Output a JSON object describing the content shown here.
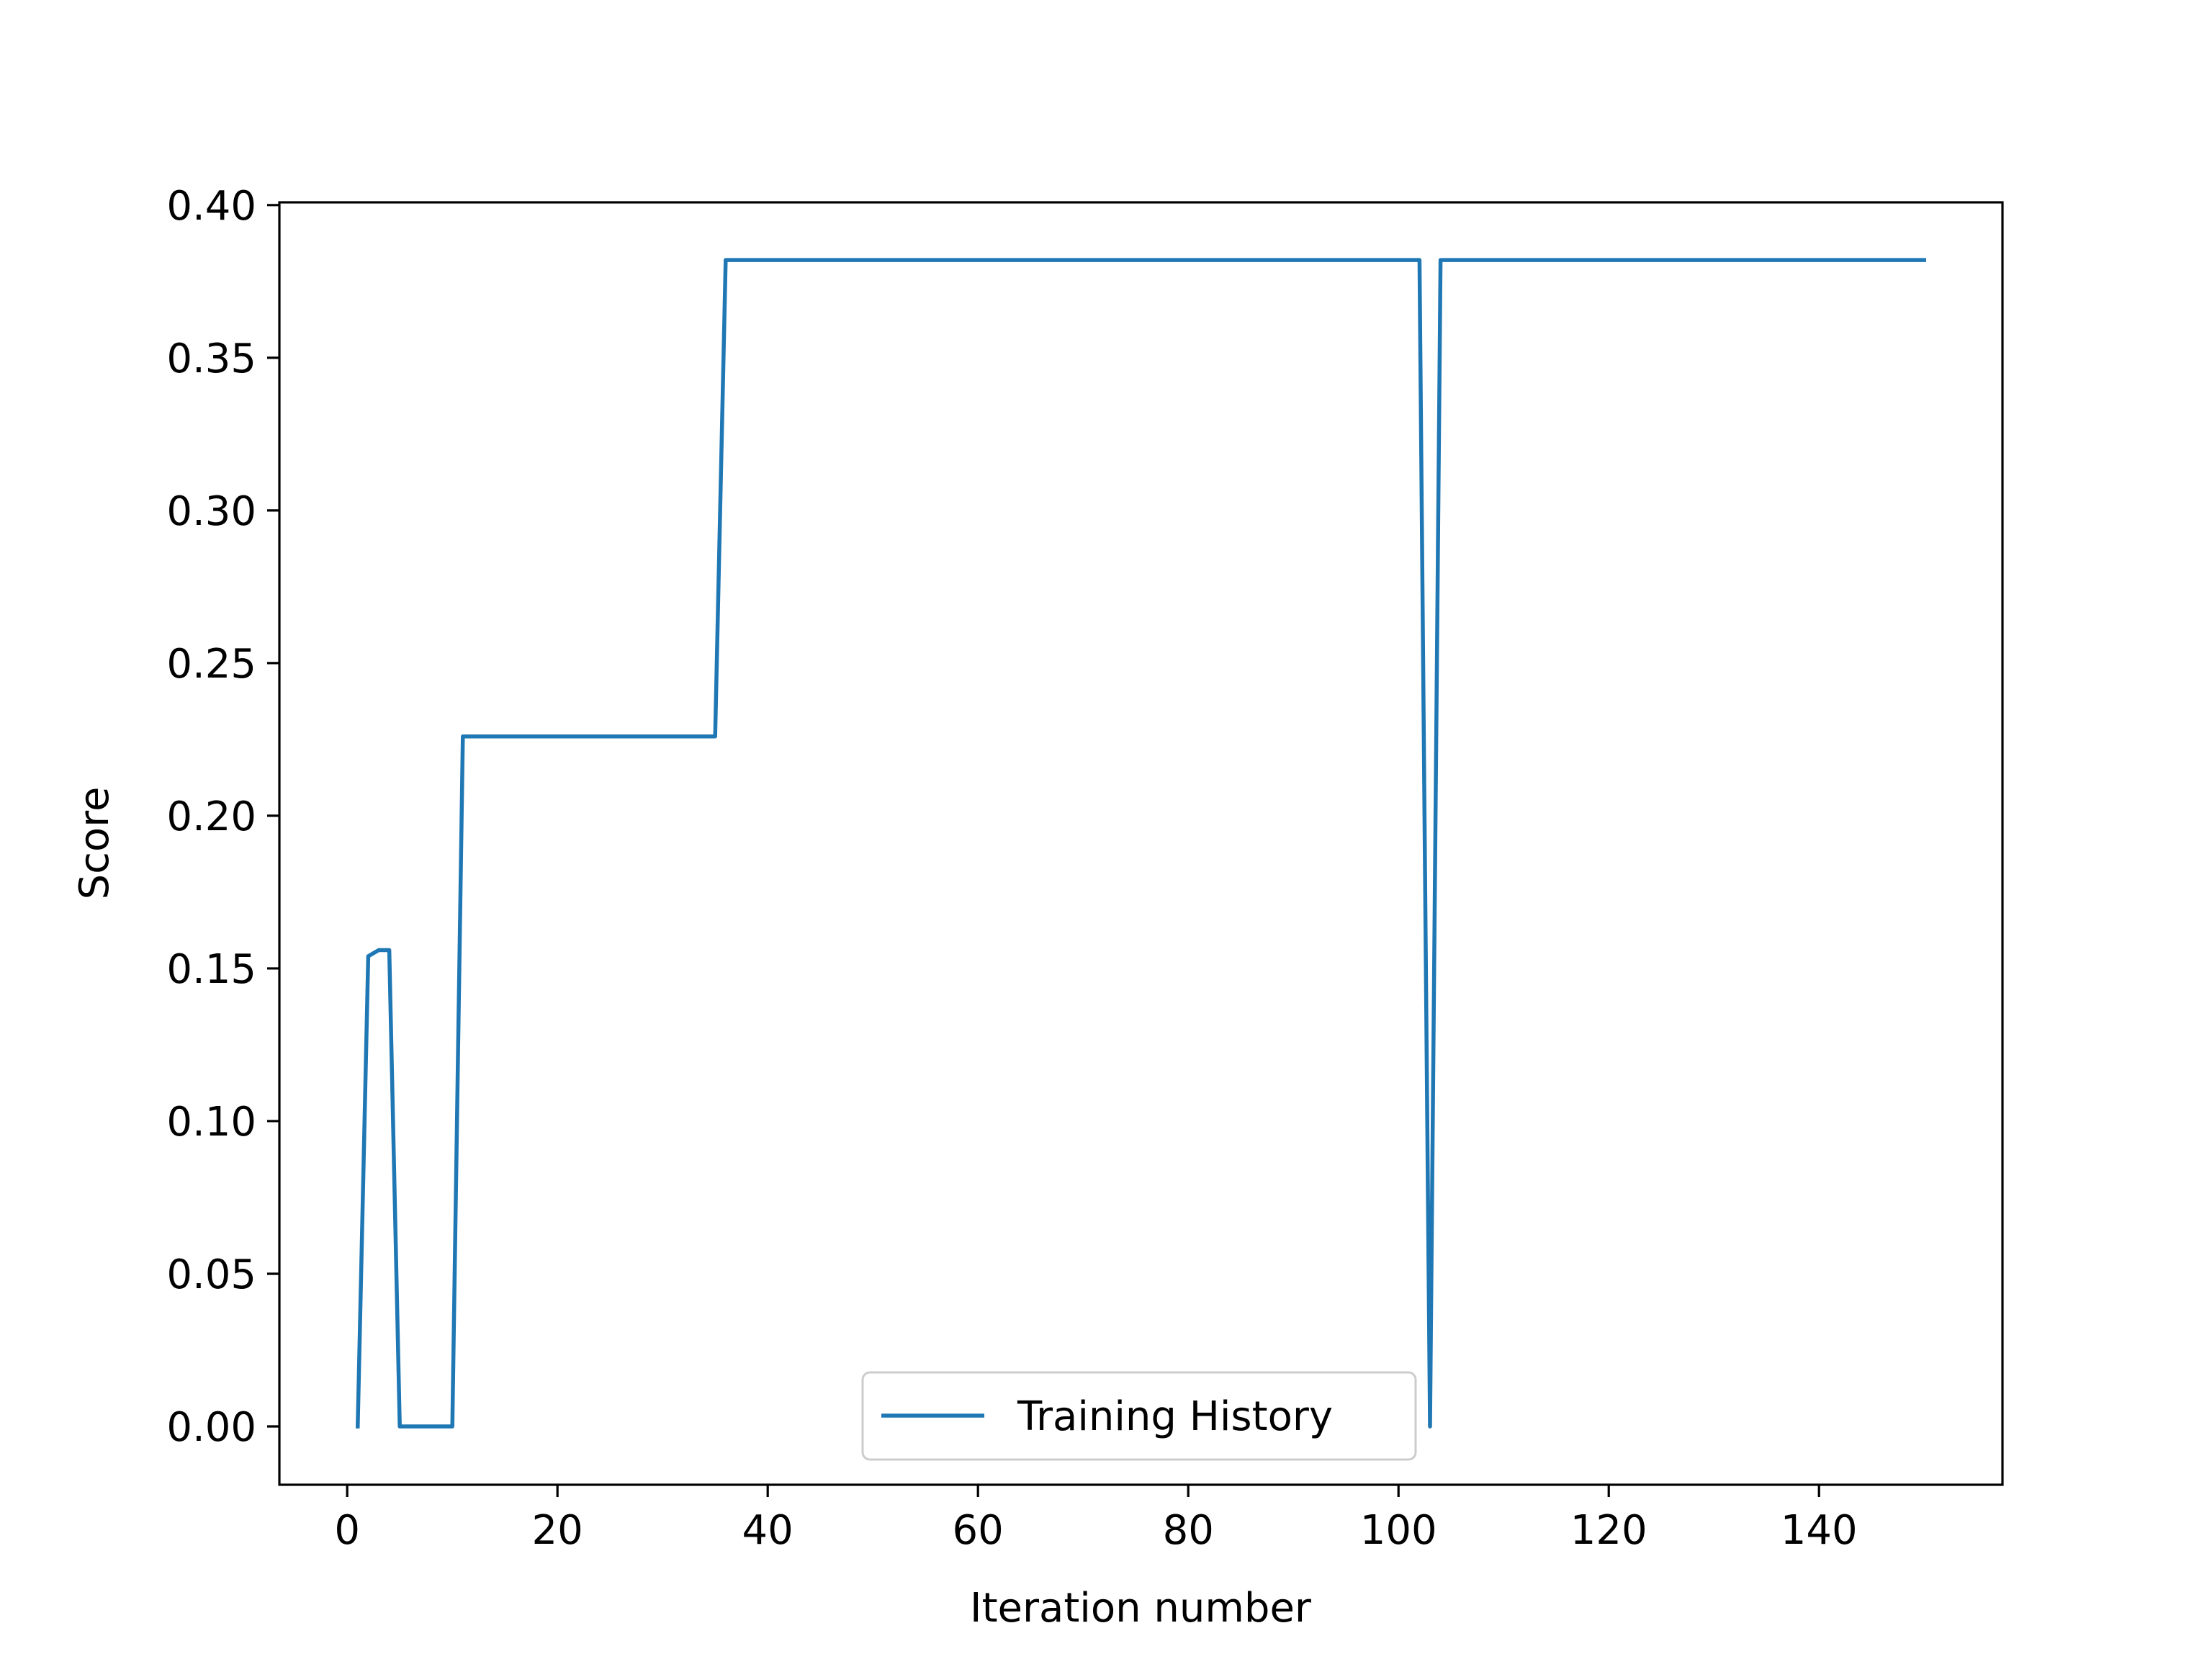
{
  "chart_data": {
    "type": "line",
    "title": "",
    "xlabel": "Iteration number",
    "ylabel": "Score",
    "xlim": [
      -6.45,
      157.45
    ],
    "ylim": [
      -0.0191,
      0.4009
    ],
    "xticks": [
      0,
      20,
      40,
      60,
      80,
      100,
      120,
      140
    ],
    "xtick_labels": [
      "0",
      "20",
      "40",
      "60",
      "80",
      "100",
      "120",
      "140"
    ],
    "yticks": [
      0.0,
      0.05,
      0.1,
      0.15,
      0.2,
      0.25,
      0.3,
      0.35,
      0.4
    ],
    "ytick_labels": [
      "0.00",
      "0.05",
      "0.10",
      "0.15",
      "0.20",
      "0.25",
      "0.30",
      "0.35",
      "0.40"
    ],
    "grid": false,
    "legend": {
      "position": "lower-center"
    },
    "series": [
      {
        "name": "Training History",
        "color": "#1f77b4",
        "points": [
          [
            1,
            0.0
          ],
          [
            2,
            0.154
          ],
          [
            3,
            0.156
          ],
          [
            4,
            0.156
          ],
          [
            5,
            0.0
          ],
          [
            6,
            0.0
          ],
          [
            7,
            0.0
          ],
          [
            8,
            0.0
          ],
          [
            9,
            0.0
          ],
          [
            10,
            0.0
          ],
          [
            11,
            0.226
          ],
          [
            35,
            0.226
          ],
          [
            36,
            0.382
          ],
          [
            102,
            0.382
          ],
          [
            103,
            0.0
          ],
          [
            104,
            0.382
          ],
          [
            150,
            0.382
          ]
        ]
      }
    ]
  }
}
